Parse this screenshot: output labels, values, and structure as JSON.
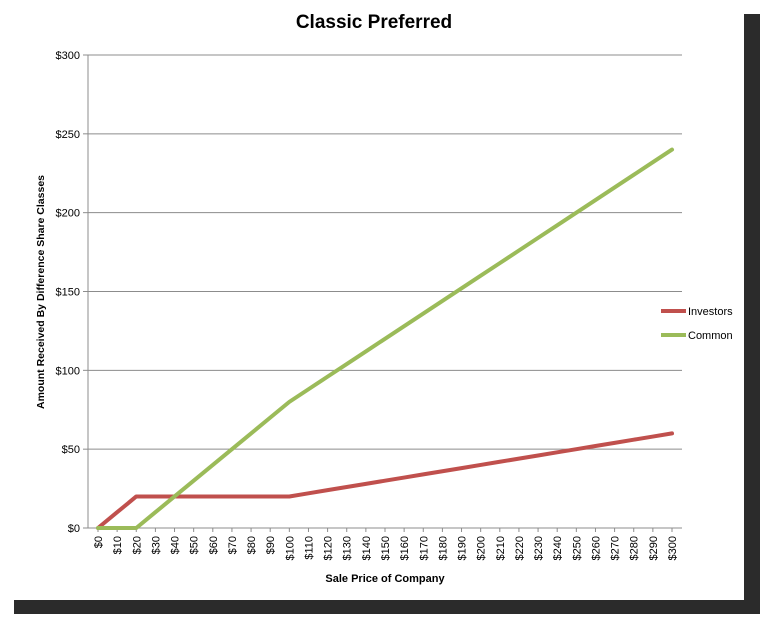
{
  "chart_data": {
    "type": "line",
    "title": "Classic Preferred",
    "xlabel": "Sale Price of Company",
    "ylabel": "Amount Received By Difference Share Classes",
    "ylim": [
      0,
      300
    ],
    "yticks": [
      0,
      50,
      100,
      150,
      200,
      250,
      300
    ],
    "ytick_labels": [
      "$0",
      "$50",
      "$100",
      "$150",
      "$200",
      "$250",
      "$300"
    ],
    "categories": [
      "$0",
      "$10",
      "$20",
      "$30",
      "$40",
      "$50",
      "$60",
      "$70",
      "$80",
      "$90",
      "$100",
      "$110",
      "$120",
      "$130",
      "$140",
      "$150",
      "$160",
      "$170",
      "$180",
      "$190",
      "$200",
      "$210",
      "$220",
      "$230",
      "$240",
      "$250",
      "$260",
      "$270",
      "$280",
      "$290",
      "$300"
    ],
    "grid": true,
    "legend": "right",
    "series": [
      {
        "name": "Investors",
        "color": "#c0504d",
        "values": [
          0,
          10,
          20,
          20,
          20,
          20,
          20,
          20,
          20,
          20,
          20,
          22,
          24,
          26,
          28,
          30,
          32,
          34,
          36,
          38,
          40,
          42,
          44,
          46,
          48,
          50,
          52,
          54,
          56,
          58,
          60
        ]
      },
      {
        "name": "Common",
        "color": "#9bbb59",
        "values": [
          0,
          0,
          0,
          10,
          20,
          30,
          40,
          50,
          60,
          70,
          80,
          88,
          96,
          104,
          112,
          120,
          128,
          136,
          144,
          152,
          160,
          168,
          176,
          184,
          192,
          200,
          208,
          216,
          224,
          232,
          240
        ]
      }
    ]
  }
}
